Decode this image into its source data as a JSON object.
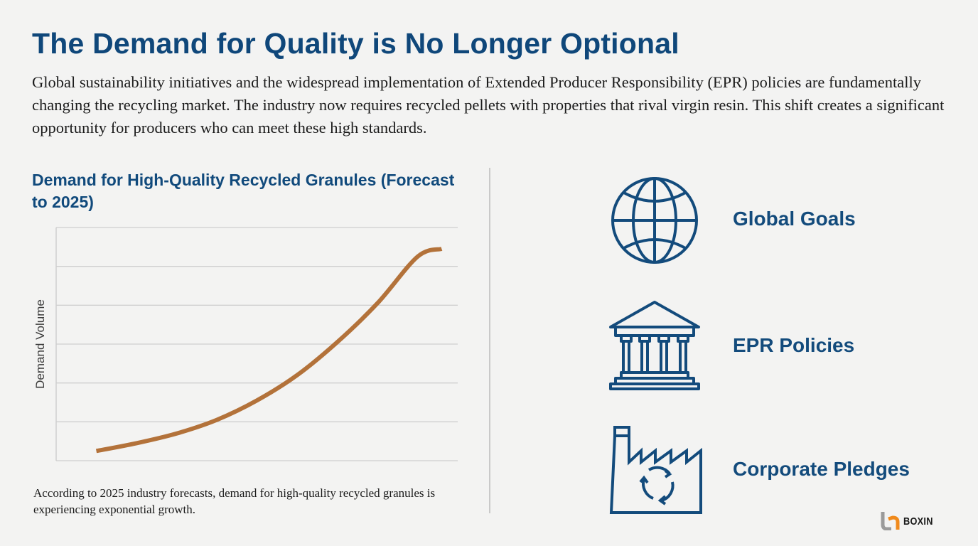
{
  "header": {
    "title": "The Demand for Quality is No Longer Optional",
    "intro": "Global sustainability initiatives and the widespread implementation of Extended Producer Responsibility (EPR) policies are fundamentally changing the recycling market. The industry now requires recycled pellets with properties that rival virgin resin. This shift creates a significant opportunity for producers who can meet these high standards."
  },
  "chart_data": {
    "type": "line",
    "title": "Demand for High-Quality Recycled Granules (Forecast to 2025)",
    "xlabel": "",
    "ylabel": "Demand Volume",
    "ylim": [
      0,
      6
    ],
    "xlim": [
      0,
      1
    ],
    "grid": true,
    "gridline_count": 6,
    "series": [
      {
        "name": "Demand",
        "color": "#b3723a",
        "x": [
          0.1,
          0.2,
          0.3,
          0.4,
          0.5,
          0.6,
          0.7,
          0.8,
          0.9,
          0.96
        ],
        "y": [
          0.25,
          0.45,
          0.7,
          1.05,
          1.55,
          2.2,
          3.05,
          4.05,
          5.25,
          5.45
        ]
      }
    ],
    "caption": "According to 2025 industry forecasts, demand for high-quality recycled granules is experiencing exponential growth."
  },
  "drivers": [
    {
      "icon": "globe-icon",
      "label": "Global Goals"
    },
    {
      "icon": "government-building-icon",
      "label": "EPR Policies"
    },
    {
      "icon": "factory-recycle-icon",
      "label": "Corporate Pledges"
    }
  ],
  "brand": {
    "name": "BOXIN",
    "logo_colors": [
      "#9a9a9a",
      "#f08a1c"
    ]
  },
  "colors": {
    "primary": "#0f477a",
    "accent": "#b3723a",
    "grid": "#cfcfcf",
    "background": "#f3f3f2"
  }
}
